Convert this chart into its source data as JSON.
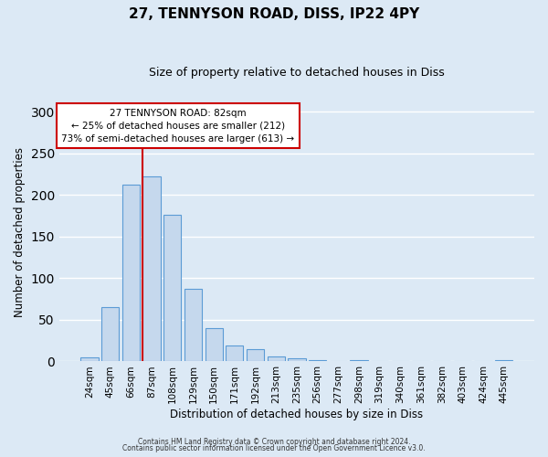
{
  "title": "27, TENNYSON ROAD, DISS, IP22 4PY",
  "subtitle": "Size of property relative to detached houses in Diss",
  "xlabel": "Distribution of detached houses by size in Diss",
  "ylabel": "Number of detached properties",
  "bar_labels": [
    "24sqm",
    "45sqm",
    "66sqm",
    "87sqm",
    "108sqm",
    "129sqm",
    "150sqm",
    "171sqm",
    "192sqm",
    "213sqm",
    "235sqm",
    "256sqm",
    "277sqm",
    "298sqm",
    "319sqm",
    "340sqm",
    "361sqm",
    "382sqm",
    "403sqm",
    "424sqm",
    "445sqm"
  ],
  "bar_values": [
    5,
    65,
    212,
    222,
    176,
    87,
    40,
    19,
    14,
    6,
    3,
    1,
    0,
    1,
    0,
    0,
    0,
    0,
    0,
    0,
    1
  ],
  "bar_color": "#c5d8ed",
  "bar_edge_color": "#5b9bd5",
  "bg_color": "#dce9f5",
  "grid_color": "#ffffff",
  "vline_color": "#cc0000",
  "ylim": [
    0,
    310
  ],
  "yticks": [
    0,
    50,
    100,
    150,
    200,
    250,
    300
  ],
  "annotation_title": "27 TENNYSON ROAD: 82sqm",
  "annotation_line1": "← 25% of detached houses are smaller (212)",
  "annotation_line2": "73% of semi-detached houses are larger (613) →",
  "annotation_box_color": "#ffffff",
  "annotation_edge_color": "#cc0000",
  "footer_line1": "Contains HM Land Registry data © Crown copyright and database right 2024.",
  "footer_line2": "Contains public sector information licensed under the Open Government Licence v3.0."
}
